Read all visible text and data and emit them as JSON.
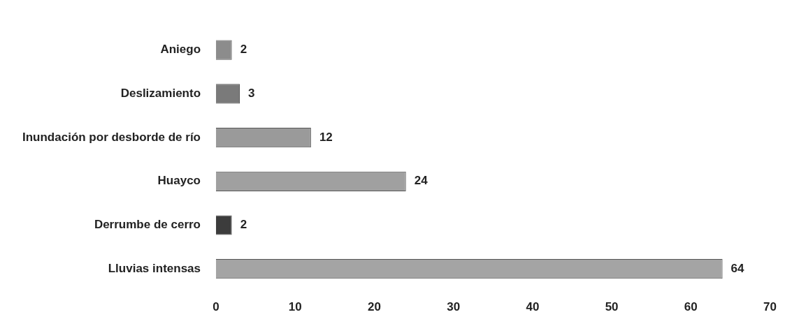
{
  "chart_data": {
    "type": "bar",
    "orientation": "horizontal",
    "categories": [
      "Aniego",
      "Deslizamiento",
      "Inundación por desborde de río",
      "Huayco",
      "Derrumbe de cerro",
      "Lluvias intensas"
    ],
    "values": [
      2,
      3,
      12,
      24,
      2,
      64
    ],
    "colors": [
      "#8c8c8c",
      "#7a7a7a",
      "#9a9a9a",
      "#a0a0a0",
      "#3c3c3c",
      "#a4a4a4"
    ],
    "xlim": [
      0,
      70
    ],
    "xticks": [
      0,
      10,
      20,
      30,
      40,
      50,
      60,
      70
    ],
    "data_labels": true,
    "grid": false,
    "legend": false
  }
}
